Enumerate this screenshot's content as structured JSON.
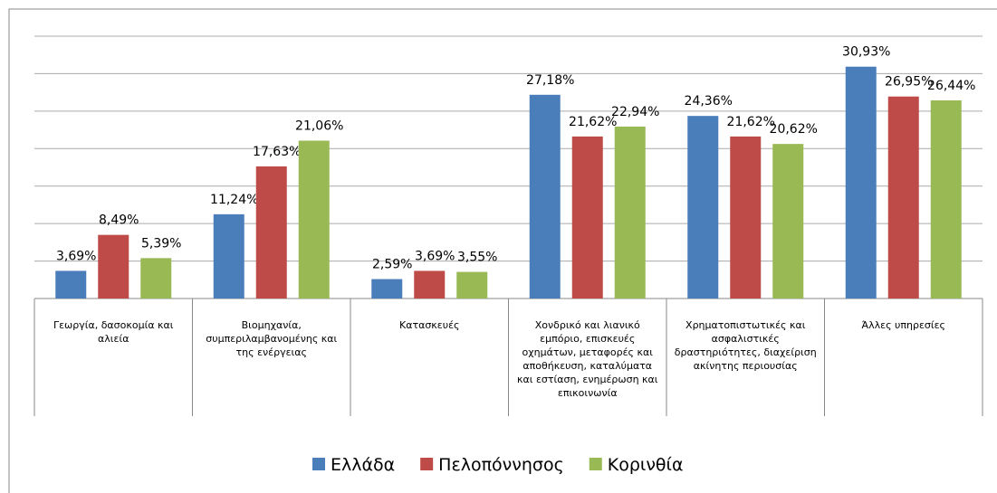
{
  "chart_data": {
    "type": "bar",
    "categories": [
      "Γεωργία, δασοκομία και αλιεία",
      "Βιομηχανία, συμπεριλαμβανομένης και της ενέργειας",
      "Κατασκευές",
      "Χονδρικό και λιανικό εμπόριο, επισκευές οχημάτων, μεταφορές και αποθήκευση, καταλύματα και εστίαση, ενημέρωση και επικοινωνία",
      "Χρηματοπιστωτικές και ασφαλιστικές δραστηριότητες, διαχείριση ακίνητης περιουσίας",
      "Άλλες υπηρεσίες"
    ],
    "series": [
      {
        "name": "Ελλάδα",
        "color": "#4a7ebb",
        "values": [
          3.69,
          11.24,
          2.59,
          27.18,
          24.36,
          30.93
        ],
        "value_labels": [
          "3,69%",
          "11,24%",
          "2,59%",
          "27,18%",
          "24,36%",
          "30,93%"
        ]
      },
      {
        "name": "Πελοπόννησος",
        "color": "#be4b48",
        "values": [
          8.49,
          17.63,
          3.69,
          21.62,
          21.62,
          26.95
        ],
        "value_labels": [
          "8,49%",
          "17,63%",
          "3,69%",
          "21,62%",
          "21,62%",
          "26,95%"
        ]
      },
      {
        "name": "Κορινθία",
        "color": "#98b954",
        "values": [
          5.39,
          21.06,
          3.55,
          22.94,
          20.62,
          26.44
        ],
        "value_labels": [
          "5,39%",
          "21,06%",
          "3,55%",
          "22,94%",
          "20,62%",
          "26,44%"
        ]
      }
    ],
    "ylim": [
      0,
      35
    ],
    "yticks": [
      0,
      5,
      10,
      15,
      20,
      25,
      30,
      35
    ],
    "grid": true,
    "legend": "bottom"
  }
}
